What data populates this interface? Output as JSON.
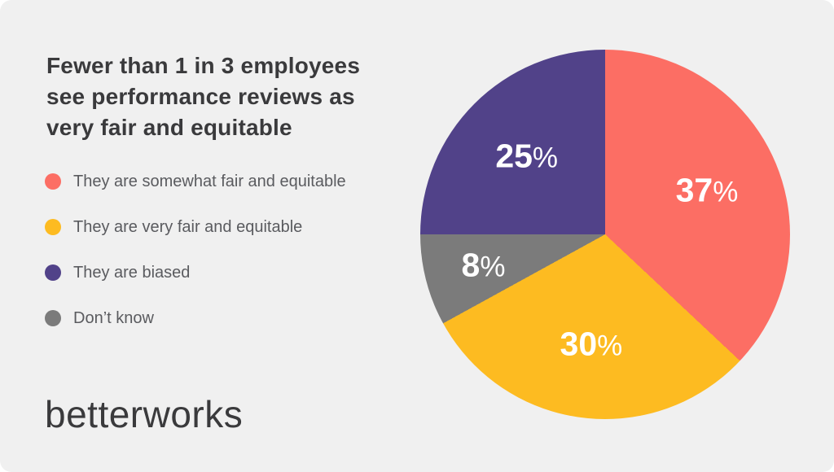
{
  "page": {
    "background_color": "#F0F0F0"
  },
  "title": {
    "lines": [
      "Fewer than 1 in 3 employees",
      "see performance reviews as",
      "very fair and equitable"
    ],
    "color": "#3A3A3C"
  },
  "legend": {
    "items": [
      {
        "label": "They are somewhat fair and equitable",
        "color": "#FC6E64"
      },
      {
        "label": "They are very fair and equitable",
        "color": "#FDBB21"
      },
      {
        "label": "They are biased",
        "color": "#514289"
      },
      {
        "label": "Don’t know",
        "color": "#7B7B7B"
      }
    ]
  },
  "chart_data": {
    "type": "pie",
    "title": "Fewer than 1 in 3 employees see performance reviews as very fair and equitable",
    "slices": [
      {
        "label": "They are somewhat fair and equitable",
        "value": 37,
        "display": "37%",
        "color": "#FC6E64"
      },
      {
        "label": "They are very fair and equitable",
        "value": 30,
        "display": "30%",
        "color": "#FDBB21"
      },
      {
        "label": "Don’t know",
        "value": 8,
        "display": "8%",
        "color": "#7B7B7B"
      },
      {
        "label": "They are biased",
        "value": 25,
        "display": "25%",
        "color": "#514289"
      }
    ],
    "start_angle_deg": 0,
    "direction": "clockwise",
    "legend_position": "left",
    "value_label_color": "#FFFFFF"
  },
  "logo": {
    "text": "betterworks",
    "color": "#3A3A3C"
  }
}
